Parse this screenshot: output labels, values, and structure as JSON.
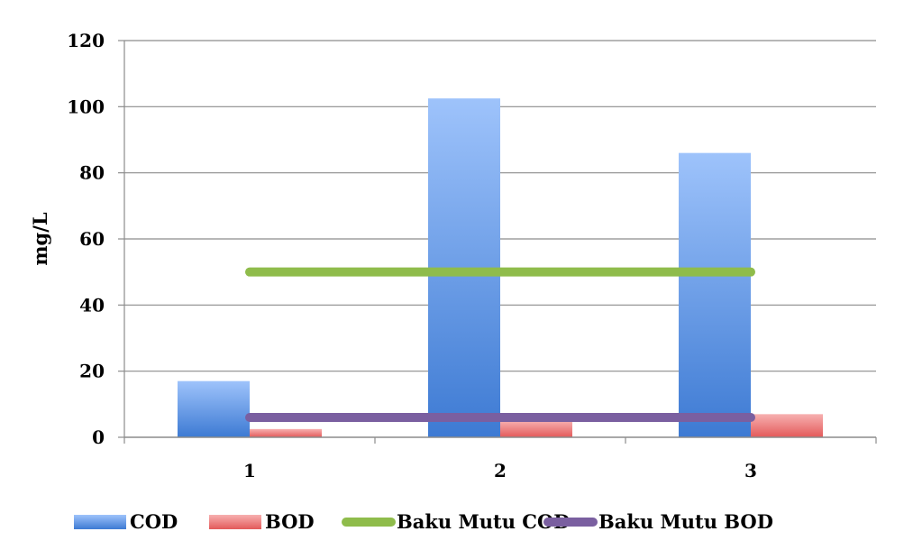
{
  "chart_data": {
    "type": "bar",
    "title": "",
    "xlabel": "",
    "ylabel": "mg/L",
    "categories": [
      "1",
      "2",
      "3"
    ],
    "ylim": [
      0,
      120
    ],
    "yticks": [
      0,
      20,
      40,
      60,
      80,
      100,
      120
    ],
    "grid": true,
    "legend_position": "bottom",
    "series": [
      {
        "name": "COD",
        "kind": "bar",
        "values": [
          17,
          102.5,
          86
        ],
        "color": "#5b8fd9"
      },
      {
        "name": "BOD",
        "kind": "bar",
        "values": [
          2.5,
          5,
          7
        ],
        "color": "#e86565"
      },
      {
        "name": "Baku Mutu COD",
        "kind": "line",
        "values": [
          50,
          50,
          50
        ],
        "color": "#8fbc4b"
      },
      {
        "name": "Baku Mutu BOD",
        "kind": "line",
        "values": [
          6,
          6,
          6
        ],
        "color": "#7a5fa0"
      }
    ]
  }
}
